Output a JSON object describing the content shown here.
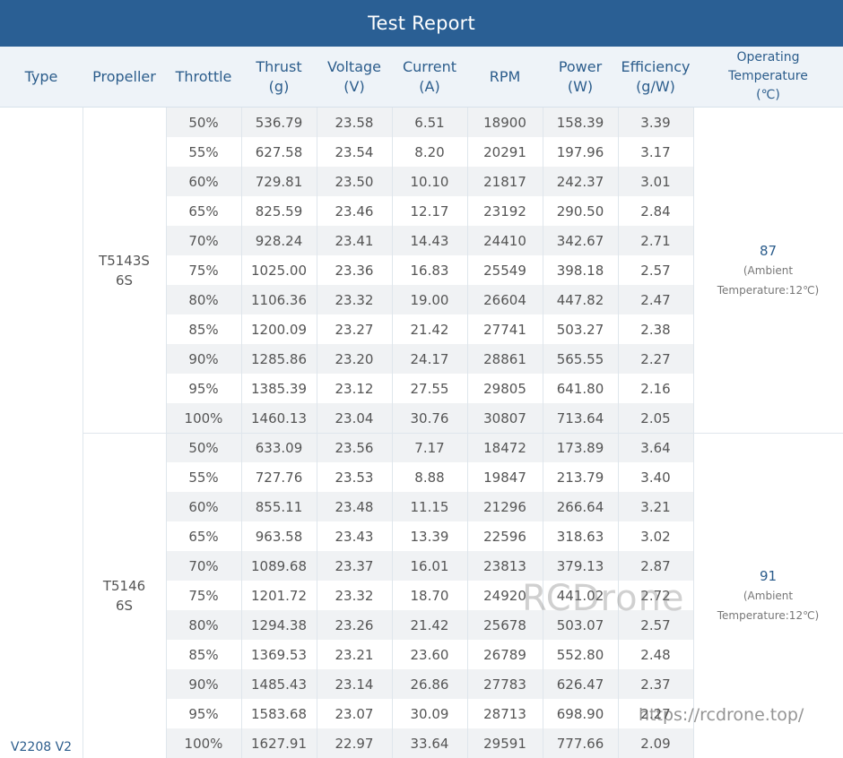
{
  "title": "Test Report",
  "headers": {
    "type": "Type",
    "propeller": "Propeller",
    "throttle": "Throttle",
    "thrust": [
      "Thrust",
      "(g)"
    ],
    "voltage": [
      "Voltage",
      "(V)"
    ],
    "current": [
      "Current",
      "(A)"
    ],
    "rpm": "RPM",
    "power": [
      "Power",
      "(W)"
    ],
    "efficiency": [
      "Efficiency",
      "(g/W)"
    ],
    "temperature": [
      "Operating",
      "Temperature",
      "(℃)"
    ]
  },
  "type_value": "V2208 V2",
  "groups": [
    {
      "propeller": [
        "T5143S",
        "6S"
      ],
      "temperature_value": "87",
      "temperature_note": [
        "(Ambient",
        "Temperature:12℃)"
      ],
      "rows": [
        [
          "50%",
          "536.79",
          "23.58",
          "6.51",
          "18900",
          "158.39",
          "3.39"
        ],
        [
          "55%",
          "627.58",
          "23.54",
          "8.20",
          "20291",
          "197.96",
          "3.17"
        ],
        [
          "60%",
          "729.81",
          "23.50",
          "10.10",
          "21817",
          "242.37",
          "3.01"
        ],
        [
          "65%",
          "825.59",
          "23.46",
          "12.17",
          "23192",
          "290.50",
          "2.84"
        ],
        [
          "70%",
          "928.24",
          "23.41",
          "14.43",
          "24410",
          "342.67",
          "2.71"
        ],
        [
          "75%",
          "1025.00",
          "23.36",
          "16.83",
          "25549",
          "398.18",
          "2.57"
        ],
        [
          "80%",
          "1106.36",
          "23.32",
          "19.00",
          "26604",
          "447.82",
          "2.47"
        ],
        [
          "85%",
          "1200.09",
          "23.27",
          "21.42",
          "27741",
          "503.27",
          "2.38"
        ],
        [
          "90%",
          "1285.86",
          "23.20",
          "24.17",
          "28861",
          "565.55",
          "2.27"
        ],
        [
          "95%",
          "1385.39",
          "23.12",
          "27.55",
          "29805",
          "641.80",
          "2.16"
        ],
        [
          "100%",
          "1460.13",
          "23.04",
          "30.76",
          "30807",
          "713.64",
          "2.05"
        ]
      ]
    },
    {
      "propeller": [
        "T5146",
        "6S"
      ],
      "temperature_value": "91",
      "temperature_note": [
        "(Ambient",
        "Temperature:12℃)"
      ],
      "rows": [
        [
          "50%",
          "633.09",
          "23.56",
          "7.17",
          "18472",
          "173.89",
          "3.64"
        ],
        [
          "55%",
          "727.76",
          "23.53",
          "8.88",
          "19847",
          "213.79",
          "3.40"
        ],
        [
          "60%",
          "855.11",
          "23.48",
          "11.15",
          "21296",
          "266.64",
          "3.21"
        ],
        [
          "65%",
          "963.58",
          "23.43",
          "13.39",
          "22596",
          "318.63",
          "3.02"
        ],
        [
          "70%",
          "1089.68",
          "23.37",
          "16.01",
          "23813",
          "379.13",
          "2.87"
        ],
        [
          "75%",
          "1201.72",
          "23.32",
          "18.70",
          "24920",
          "441.02",
          "2.72"
        ],
        [
          "80%",
          "1294.38",
          "23.26",
          "21.42",
          "25678",
          "503.07",
          "2.57"
        ],
        [
          "85%",
          "1369.53",
          "23.21",
          "23.60",
          "26789",
          "552.80",
          "2.48"
        ],
        [
          "90%",
          "1485.43",
          "23.14",
          "26.86",
          "27783",
          "626.47",
          "2.37"
        ],
        [
          "95%",
          "1583.68",
          "23.07",
          "30.09",
          "28713",
          "698.90",
          "2.27"
        ],
        [
          "100%",
          "1627.91",
          "22.97",
          "33.64",
          "29591",
          "777.66",
          "2.09"
        ]
      ]
    }
  ],
  "watermark": "RCDrone",
  "watermark_url": "https://rcdrone.top/"
}
